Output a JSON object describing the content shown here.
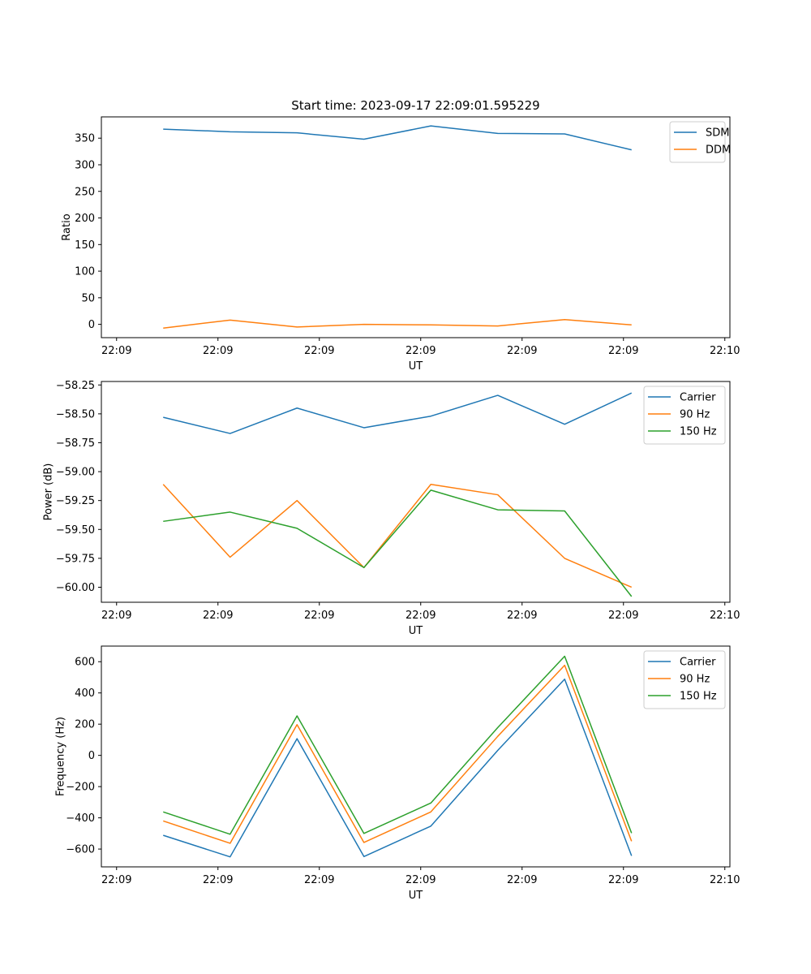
{
  "figure": {
    "title": "Start time: 2023-09-17 22:09:01.595229",
    "colors": {
      "blue": "#1f77b4",
      "orange": "#ff7f0e",
      "green": "#2ca02c"
    }
  },
  "chart_data": [
    {
      "type": "line",
      "xlabel": "UT",
      "ylabel": "Ratio",
      "x_tick_labels": [
        "22:09",
        "22:09",
        "22:09",
        "22:09",
        "22:09",
        "22:09",
        "22:10"
      ],
      "x_index": [
        0.46,
        1.12,
        1.78,
        2.44,
        3.1,
        3.76,
        4.42,
        5.08
      ],
      "xlim": [
        -0.15,
        6.05
      ],
      "ylim": [
        -25,
        390
      ],
      "yticks": [
        0,
        50,
        100,
        150,
        200,
        250,
        300,
        350
      ],
      "ytick_labels": [
        "0",
        "50",
        "100",
        "150",
        "200",
        "250",
        "300",
        "350"
      ],
      "legend": "top-right",
      "series": [
        {
          "name": "SDM",
          "color": "#1f77b4",
          "values": [
            367,
            362,
            360,
            348,
            373,
            359,
            358,
            328
          ]
        },
        {
          "name": "DDM",
          "color": "#ff7f0e",
          "values": [
            -7,
            8,
            -5,
            0,
            -1,
            -3,
            9,
            -1
          ]
        }
      ]
    },
    {
      "type": "line",
      "xlabel": "UT",
      "ylabel": "Power (dB)",
      "x_tick_labels": [
        "22:09",
        "22:09",
        "22:09",
        "22:09",
        "22:09",
        "22:09",
        "22:10"
      ],
      "x_index": [
        0.46,
        1.12,
        1.78,
        2.44,
        3.1,
        3.76,
        4.42,
        5.08
      ],
      "xlim": [
        -0.15,
        6.05
      ],
      "ylim": [
        -60.13,
        -58.22
      ],
      "yticks": [
        -60.0,
        -59.75,
        -59.5,
        -59.25,
        -59.0,
        -58.75,
        -58.5,
        -58.25
      ],
      "ytick_labels": [
        "−60.00",
        "−59.75",
        "−59.50",
        "−59.25",
        "−59.00",
        "−58.75",
        "−58.50",
        "−58.25"
      ],
      "legend": "top-right",
      "series": [
        {
          "name": "Carrier",
          "color": "#1f77b4",
          "values": [
            -58.53,
            -58.67,
            -58.45,
            -58.62,
            -58.52,
            -58.34,
            -58.59,
            -58.32
          ]
        },
        {
          "name": "90 Hz",
          "color": "#ff7f0e",
          "values": [
            -59.11,
            -59.74,
            -59.25,
            -59.83,
            -59.11,
            -59.2,
            -59.75,
            -60.0
          ]
        },
        {
          "name": "150 Hz",
          "color": "#2ca02c",
          "values": [
            -59.43,
            -59.35,
            -59.49,
            -59.83,
            -59.16,
            -59.33,
            -59.34,
            -60.08
          ]
        }
      ]
    },
    {
      "type": "line",
      "xlabel": "UT",
      "ylabel": "Frequency (Hz)",
      "x_tick_labels": [
        "22:09",
        "22:09",
        "22:09",
        "22:09",
        "22:09",
        "22:09",
        "22:10"
      ],
      "x_index": [
        0.46,
        1.12,
        1.78,
        2.44,
        3.1,
        3.76,
        4.42,
        5.08
      ],
      "xlim": [
        -0.15,
        6.05
      ],
      "ylim": [
        -714,
        700
      ],
      "yticks": [
        -600,
        -400,
        -200,
        0,
        200,
        400,
        600
      ],
      "ytick_labels": [
        "−600",
        "−400",
        "−200",
        "0",
        "200",
        "400",
        "600"
      ],
      "legend": "top-right",
      "series": [
        {
          "name": "Carrier",
          "color": "#1f77b4",
          "values": [
            -512,
            -650,
            107,
            -648,
            -453,
            32,
            488,
            -643
          ]
        },
        {
          "name": "90 Hz",
          "color": "#ff7f0e",
          "values": [
            -420,
            -563,
            197,
            -558,
            -362,
            122,
            577,
            -550
          ]
        },
        {
          "name": "150 Hz",
          "color": "#2ca02c",
          "values": [
            -362,
            -505,
            253,
            -500,
            -305,
            178,
            635,
            -498
          ]
        }
      ]
    }
  ]
}
